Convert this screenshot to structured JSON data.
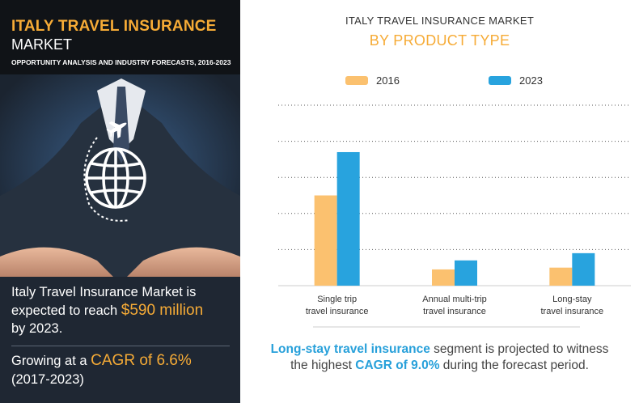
{
  "left_panel": {
    "title_line1": "ITALY TRAVEL INSURANCE",
    "title_line2": "MARKET",
    "subtitle": "OPPORTUNITY ANALYSIS AND INDUSTRY FORECASTS, 2016-2023",
    "stat1": {
      "line1": "Italy Travel Insurance Market is",
      "pre": "expected to reach ",
      "highlight": "$590 million",
      "line3": "by 2023."
    },
    "stat2": {
      "pre": "Growing at a ",
      "highlight": "CAGR of 6.6%",
      "line2": "(2017-2023)"
    }
  },
  "chart_data": {
    "type": "bar",
    "title": "ITALY TRAVEL INSURANCE MARKET",
    "subtitle": "BY PRODUCT TYPE",
    "categories": [
      [
        "Single trip",
        "travel insurance"
      ],
      [
        "Annual multi-trip",
        "travel insurance"
      ],
      [
        "Long-stay",
        "travel insurance"
      ]
    ],
    "series": [
      {
        "name": "2016",
        "color": "#fbc16f",
        "values": [
          50,
          9,
          10
        ]
      },
      {
        "name": "2023",
        "color": "#28a3de",
        "values": [
          74,
          14,
          18
        ]
      }
    ],
    "ylim": [
      0,
      100
    ],
    "gridlines": 5,
    "grid": true
  },
  "footnote": {
    "bold1": "Long-stay travel insurance",
    "text1": " segment is projected to witness",
    "text2": "the highest ",
    "bold2": "CAGR of 9.0%",
    "text3": " during the forecast period."
  },
  "colors": {
    "accent_orange": "#f6ab36",
    "accent_blue": "#27a0da",
    "dark_bg": "#232a33"
  }
}
